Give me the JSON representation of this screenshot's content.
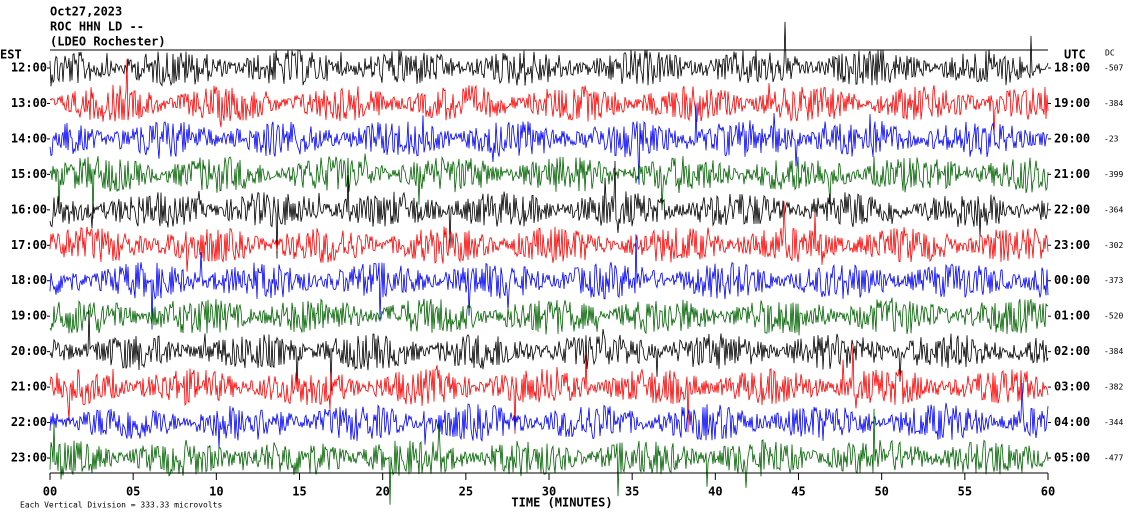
{
  "chart_data": {
    "type": "seismogram",
    "header": [
      "Oct27,2023",
      "ROC HHN LD --",
      "(LDEO Rochester)"
    ],
    "left_axis_label": "EST",
    "right_axis_label": "UTC",
    "dc_label": "DC",
    "rows": [
      {
        "est": "12:00",
        "utc": "18:00",
        "dc": -507,
        "color": "#000000"
      },
      {
        "est": "13:00",
        "utc": "19:00",
        "dc": -384,
        "color": "#ff0000"
      },
      {
        "est": "14:00",
        "utc": "20:00",
        "dc": -23,
        "color": "#0000ff"
      },
      {
        "est": "15:00",
        "utc": "21:00",
        "dc": -399,
        "color": "#006400"
      },
      {
        "est": "16:00",
        "utc": "22:00",
        "dc": -364,
        "color": "#000000"
      },
      {
        "est": "17:00",
        "utc": "23:00",
        "dc": -302,
        "color": "#ff0000"
      },
      {
        "est": "18:00",
        "utc": "00:00",
        "dc": -373,
        "color": "#0000ff"
      },
      {
        "est": "19:00",
        "utc": "01:00",
        "dc": -520,
        "color": "#006400"
      },
      {
        "est": "20:00",
        "utc": "02:00",
        "dc": -384,
        "color": "#000000"
      },
      {
        "est": "21:00",
        "utc": "03:00",
        "dc": -382,
        "color": "#ff0000"
      },
      {
        "est": "22:00",
        "utc": "04:00",
        "dc": -344,
        "color": "#0000ff"
      },
      {
        "est": "23:00",
        "utc": "05:00",
        "dc": -477,
        "color": "#006400"
      }
    ],
    "xlim": [
      0,
      60
    ],
    "xticks": [
      {
        "value": 0,
        "label": "00"
      },
      {
        "value": 5,
        "label": "05"
      },
      10,
      15,
      20,
      25,
      30,
      35,
      40,
      45,
      50,
      55,
      60
    ],
    "xlabel": "TIME (MINUTES)",
    "note": "Each Vertical Division = 333.33 microvolts"
  }
}
